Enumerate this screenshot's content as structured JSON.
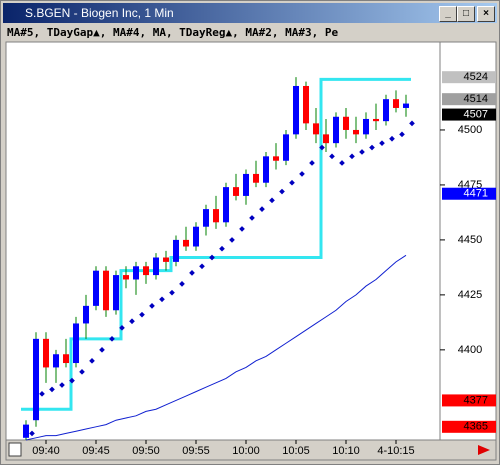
{
  "window": {
    "title": "S.BGEN - Biogen Inc, 1 Min"
  },
  "header": {
    "indicators": "MA#5, TDayGap▲, MA#4, MA, TDayReg▲, MA#2, MA#3, Pe"
  },
  "chart_data": {
    "type": "candlestick",
    "categories": [
      null,
      null,
      "09:40",
      null,
      null,
      null,
      null,
      "09:45",
      null,
      null,
      null,
      null,
      "09:50",
      null,
      null,
      null,
      null,
      "09:55",
      null,
      null,
      null,
      null,
      "10:00",
      null,
      null,
      null,
      null,
      "10:05",
      null,
      null,
      null,
      null,
      "10:10",
      null,
      null,
      null,
      null,
      "4-10:15",
      null
    ],
    "open": [
      4360,
      4368,
      4405,
      4392,
      4398,
      4394,
      4412,
      4420,
      4436,
      4418,
      4434,
      4432,
      4438,
      4434,
      4442,
      4440,
      4450,
      4447,
      4456,
      4464,
      4458,
      4474,
      4470,
      4480,
      4476,
      4488,
      4486,
      4498,
      4520,
      4503,
      4498,
      4494,
      4506,
      4500,
      4498,
      4505,
      4504,
      4514,
      4510
    ],
    "high": [
      4368,
      4408,
      4408,
      4400,
      4405,
      4415,
      4425,
      4438,
      4438,
      4436,
      4438,
      4440,
      4440,
      4444,
      4445,
      4452,
      4456,
      4458,
      4466,
      4470,
      4476,
      4480,
      4482,
      4486,
      4490,
      4494,
      4500,
      4524,
      4522,
      4510,
      4505,
      4508,
      4510,
      4506,
      4508,
      4512,
      4516,
      4518,
      4516
    ],
    "low": [
      4359,
      4365,
      4385,
      4385,
      4392,
      4392,
      4405,
      4418,
      4415,
      4416,
      4428,
      4425,
      4430,
      4432,
      4436,
      4438,
      4445,
      4445,
      4452,
      4455,
      4456,
      4468,
      4466,
      4474,
      4474,
      4482,
      4484,
      4496,
      4500,
      4494,
      4490,
      4492,
      4496,
      4494,
      4496,
      4500,
      4502,
      4508,
      4506
    ],
    "close": [
      4366,
      4405,
      4392,
      4398,
      4394,
      4412,
      4420,
      4436,
      4418,
      4434,
      4432,
      4438,
      4434,
      4442,
      4440,
      4450,
      4447,
      4456,
      4464,
      4458,
      4474,
      4470,
      4480,
      4476,
      4488,
      4486,
      4498,
      4520,
      4503,
      4498,
      4494,
      4506,
      4500,
      4498,
      4505,
      4504,
      4514,
      4510,
      4512
    ],
    "up_color": "#0000ff",
    "down_color": "#ff0000",
    "lines": [
      {
        "color": "#33e6f0",
        "step": true,
        "values": [
          4373,
          4373,
          4373,
          4373,
          4373,
          4405,
          4405,
          4405,
          4405,
          4405,
          4436,
          4436,
          4436,
          4436,
          4436,
          4442,
          4442,
          4442,
          4442,
          4442,
          4442,
          4442,
          4442,
          4442,
          4442,
          4442,
          4442,
          4442,
          4442,
          4442,
          4523,
          4523,
          4523,
          4523,
          4523,
          4523,
          4523,
          4523,
          4523
        ]
      },
      {
        "color": "#1020d0",
        "step": false,
        "values": [
          4359,
          4360,
          4361,
          4361,
          4362,
          4363,
          4364,
          4365,
          4366,
          4368,
          4369,
          4370,
          4372,
          4373,
          4375,
          4377,
          4379,
          4381,
          4383,
          4385,
          4387,
          4390,
          4392,
          4395,
          4397,
          4400,
          4403,
          4406,
          4409,
          4412,
          4415,
          4418,
          4422,
          4425,
          4429,
          4432,
          4436,
          4440,
          4443
        ]
      }
    ],
    "dots": {
      "color": "#0000c0",
      "values": [
        4362,
        4380,
        4382,
        4384,
        4386,
        4390,
        4395,
        4400,
        4405,
        4410,
        4413,
        4416,
        4420,
        4423,
        4426,
        4430,
        4435,
        4438,
        4442,
        4446,
        4450,
        4455,
        4460,
        4464,
        4468,
        4472,
        4476,
        4480,
        4485,
        4492,
        4488,
        4485,
        4488,
        4490,
        4492,
        4494,
        4496,
        4498,
        4503
      ]
    },
    "ylim": [
      4359,
      4540
    ],
    "yticks": [
      4500,
      4475,
      4450,
      4425,
      4400
    ],
    "markers": [
      {
        "value": 4524,
        "color": "#c0c0c0",
        "text_color": "#000000"
      },
      {
        "value": 4514,
        "color": "#a0a0a0",
        "text_color": "#000000"
      },
      {
        "value": 4507,
        "color": "#000000",
        "text_color": "#ffffff"
      },
      {
        "value": 4471,
        "color": "#0000ff",
        "text_color": "#ffffff"
      },
      {
        "value": 4377,
        "color": "#ff0000",
        "text_color": "#000000"
      },
      {
        "value": 4365,
        "color": "#ff0000",
        "text_color": "#000000"
      }
    ]
  }
}
